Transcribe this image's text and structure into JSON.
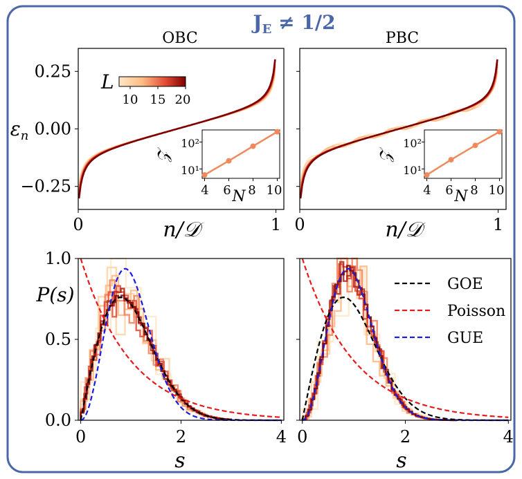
{
  "figure": {
    "title": "J",
    "title_sub": "E",
    "title_rest": " ≠ 1/2",
    "frame_color": "#4a67a8"
  },
  "chart_data": [
    {
      "id": "obc-eigen",
      "type": "line",
      "title": "OBC",
      "xlabel": "n/𝒟",
      "ylabel": "εn",
      "xlim": [
        0,
        1.04
      ],
      "ylim": [
        -0.35,
        0.35
      ],
      "xticks": [
        {
          "v": 0,
          "label": "0"
        },
        {
          "v": 1,
          "label": "1"
        }
      ],
      "yticks": [
        {
          "v": 0.25,
          "label": "0.25"
        },
        {
          "v": 0,
          "label": "0.00"
        },
        {
          "v": -0.25,
          "label": "−0.25"
        }
      ],
      "colorbar": {
        "label": "L",
        "ticks": [
          "10",
          "15",
          "20"
        ],
        "range": [
          8,
          20
        ]
      },
      "series_L": [
        8,
        10,
        12,
        14,
        16,
        18,
        20
      ],
      "inset": {
        "xlabel": "N",
        "ylabel": "𝒵",
        "xticks": [
          "4",
          "6",
          "8",
          "10"
        ],
        "yticks": [
          "10¹",
          "10²"
        ],
        "x": [
          4,
          6,
          8,
          10
        ],
        "y": [
          6,
          20,
          70,
          240
        ],
        "color": "#f08a5d"
      }
    },
    {
      "id": "pbc-eigen",
      "type": "line",
      "title": "PBC",
      "xlabel": "n/𝒟",
      "ylabel": "",
      "xlim": [
        0,
        1.04
      ],
      "ylim": [
        -0.35,
        0.35
      ],
      "xticks": [
        {
          "v": 0,
          "label": "0"
        },
        {
          "v": 1,
          "label": "1"
        }
      ],
      "series_L": [
        8,
        10,
        12,
        14,
        16,
        18,
        20
      ],
      "inset": {
        "xlabel": "N",
        "ylabel": "𝒵",
        "xticks": [
          "4",
          "6",
          "8",
          "10"
        ],
        "yticks": [
          "10¹",
          "10²"
        ],
        "x": [
          4,
          6,
          8,
          10
        ],
        "y": [
          6,
          22,
          75,
          240
        ],
        "color": "#f08a5d"
      }
    },
    {
      "id": "obc-spacing",
      "type": "line",
      "xlabel": "s",
      "ylabel": "P(s)",
      "xlim": [
        -0.05,
        4.05
      ],
      "ylim": [
        0,
        1
      ],
      "xticks": [
        {
          "v": 0,
          "label": "0"
        },
        {
          "v": 2,
          "label": "2"
        },
        {
          "v": 4,
          "label": "4"
        }
      ],
      "yticks": [
        {
          "v": 1,
          "label": "1.0"
        },
        {
          "v": 0.5,
          "label": "0.5"
        },
        {
          "v": 0,
          "label": "0.0"
        }
      ],
      "histogram_matches": "GOE",
      "reference_curves": [
        "GOE",
        "Poisson",
        "GUE"
      ]
    },
    {
      "id": "pbc-spacing",
      "type": "line",
      "xlabel": "s",
      "ylabel": "",
      "xlim": [
        -0.05,
        4.05
      ],
      "ylim": [
        0,
        1
      ],
      "xticks": [
        {
          "v": 0,
          "label": "0"
        },
        {
          "v": 2,
          "label": "2"
        },
        {
          "v": 4,
          "label": "4"
        }
      ],
      "histogram_matches": "GUE",
      "reference_curves": [
        "GOE",
        "Poisson",
        "GUE"
      ],
      "legend": {
        "position": "top-right",
        "entries": [
          {
            "name": "GOE",
            "color": "#000000"
          },
          {
            "name": "Poisson",
            "color": "#e8191b"
          },
          {
            "name": "GUE",
            "color": "#1c1ce0"
          }
        ]
      }
    }
  ]
}
